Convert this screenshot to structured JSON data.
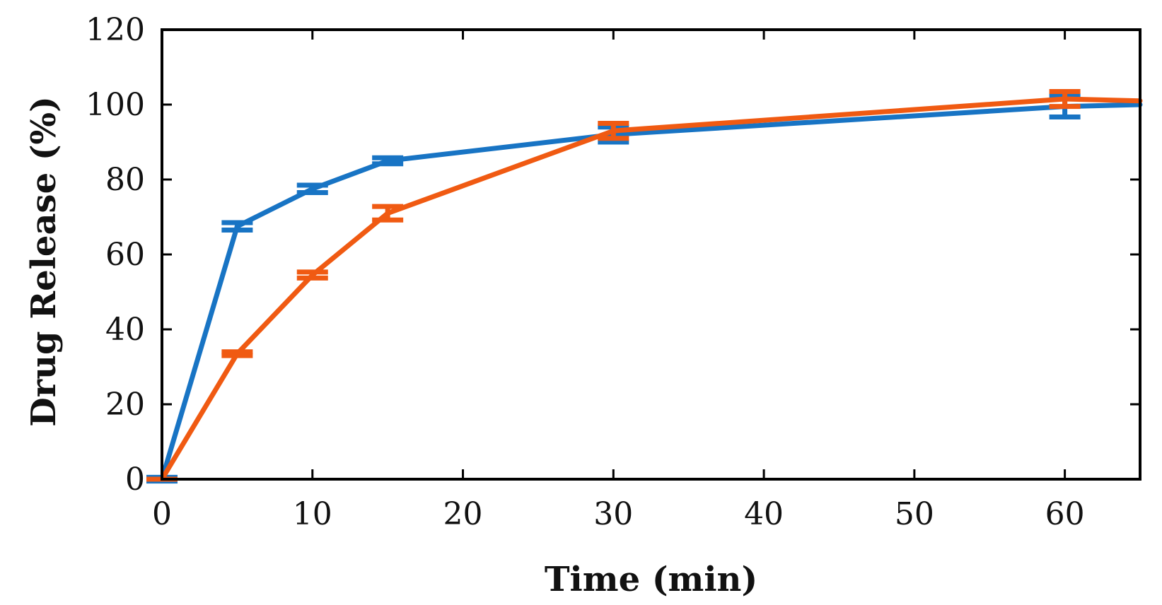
{
  "chart_data": {
    "type": "line",
    "title": "",
    "xlabel": "Time (min)",
    "ylabel": "Drug Release (%)",
    "xlim": [
      0,
      65
    ],
    "ylim": [
      0,
      120
    ],
    "xticks": [
      0,
      10,
      20,
      30,
      40,
      50,
      60
    ],
    "yticks": [
      0,
      20,
      40,
      60,
      80,
      100,
      120
    ],
    "series": [
      {
        "name": "blue series",
        "color": "#1874c4",
        "points": [
          {
            "x": 0,
            "y": 0,
            "err": 0.5
          },
          {
            "x": 5,
            "y": 67.5,
            "err": 1.0
          },
          {
            "x": 10,
            "y": 77.5,
            "err": 1.0
          },
          {
            "x": 15,
            "y": 85,
            "err": 0.8
          },
          {
            "x": 30,
            "y": 92,
            "err": 2.0
          },
          {
            "x": 60,
            "y": 99.5,
            "err": 2.8
          },
          {
            "x": 65,
            "y": 100,
            "err": 0
          }
        ]
      },
      {
        "name": "orange series",
        "color": "#f05a12",
        "points": [
          {
            "x": 0,
            "y": 0,
            "err": 0
          },
          {
            "x": 5,
            "y": 33.5,
            "err": 0.5
          },
          {
            "x": 10,
            "y": 54.5,
            "err": 0.8
          },
          {
            "x": 15,
            "y": 71,
            "err": 1.8
          },
          {
            "x": 30,
            "y": 93,
            "err": 2.0
          },
          {
            "x": 60,
            "y": 101.5,
            "err": 2.0
          },
          {
            "x": 65,
            "y": 101,
            "err": 0
          }
        ]
      }
    ]
  }
}
